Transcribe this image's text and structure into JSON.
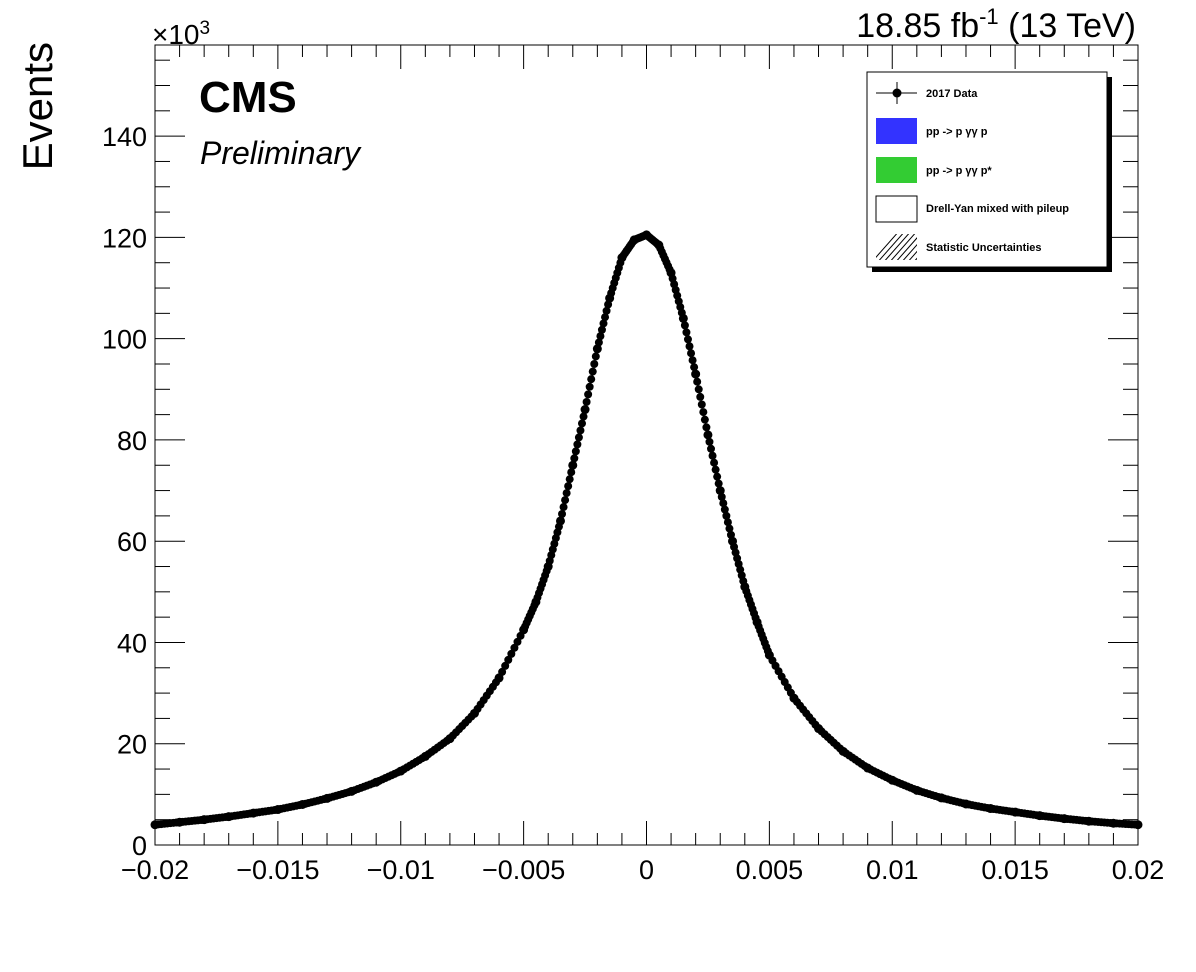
{
  "header": {
    "lumi": "18.85 fb",
    "lumi_sup": "-1",
    "energy": " (13 TeV)",
    "exponent_prefix": "×10",
    "exponent_power": "3",
    "experiment": "CMS",
    "status": "Preliminary"
  },
  "legend": {
    "entries": [
      {
        "label": "2017 Data",
        "style": "marker"
      },
      {
        "label": "pp -> p  γγ p",
        "style": "fill",
        "color": "#3333ff"
      },
      {
        "label": "pp -> p  γγ p*",
        "style": "fill",
        "color": "#33cc33"
      },
      {
        "label": "Drell-Yan mixed with pileup",
        "style": "box"
      },
      {
        "label": "Statistic Uncertainties",
        "style": "hatch"
      }
    ]
  },
  "chart_data": {
    "type": "scatter",
    "title": "",
    "xlabel": "",
    "ylabel": "Events",
    "xlim": [
      -0.02,
      0.02
    ],
    "ylim": [
      0,
      158
    ],
    "y_unit_multiplier": "×10^3",
    "x_ticks": [
      "−0.02",
      "−0.015",
      "−0.01",
      "−0.005",
      "0",
      "0.005",
      "0.01",
      "0.015",
      "0.02"
    ],
    "y_ticks": [
      "0",
      "20",
      "40",
      "60",
      "80",
      "100",
      "120",
      "140"
    ],
    "grid": false,
    "legend_position": "top-right",
    "series": [
      {
        "name": "2017 Data",
        "color": "#000000",
        "x": [
          -0.02,
          -0.019,
          -0.018,
          -0.017,
          -0.016,
          -0.015,
          -0.014,
          -0.013,
          -0.012,
          -0.011,
          -0.01,
          -0.009,
          -0.008,
          -0.007,
          -0.006,
          -0.005,
          -0.0045,
          -0.004,
          -0.0035,
          -0.003,
          -0.0025,
          -0.002,
          -0.0015,
          -0.001,
          -0.0005,
          0.0,
          0.0005,
          0.001,
          0.0015,
          0.002,
          0.0025,
          0.003,
          0.0035,
          0.004,
          0.0045,
          0.005,
          0.006,
          0.007,
          0.008,
          0.009,
          0.01,
          0.011,
          0.012,
          0.013,
          0.014,
          0.015,
          0.016,
          0.017,
          0.018,
          0.019,
          0.02
        ],
        "y": [
          4.0,
          4.5,
          5.0,
          5.6,
          6.3,
          7.0,
          8.0,
          9.2,
          10.6,
          12.4,
          14.6,
          17.5,
          21.0,
          26.0,
          33.0,
          42.5,
          48.0,
          55.0,
          64.0,
          75.0,
          86.0,
          98.0,
          108.0,
          116.0,
          119.5,
          120.5,
          118.5,
          113.0,
          104.0,
          93.0,
          81.0,
          70.0,
          60.0,
          51.0,
          44.0,
          37.5,
          29.0,
          23.0,
          18.5,
          15.2,
          12.8,
          10.8,
          9.3,
          8.1,
          7.2,
          6.5,
          5.8,
          5.2,
          4.7,
          4.3,
          4.0
        ]
      }
    ]
  }
}
